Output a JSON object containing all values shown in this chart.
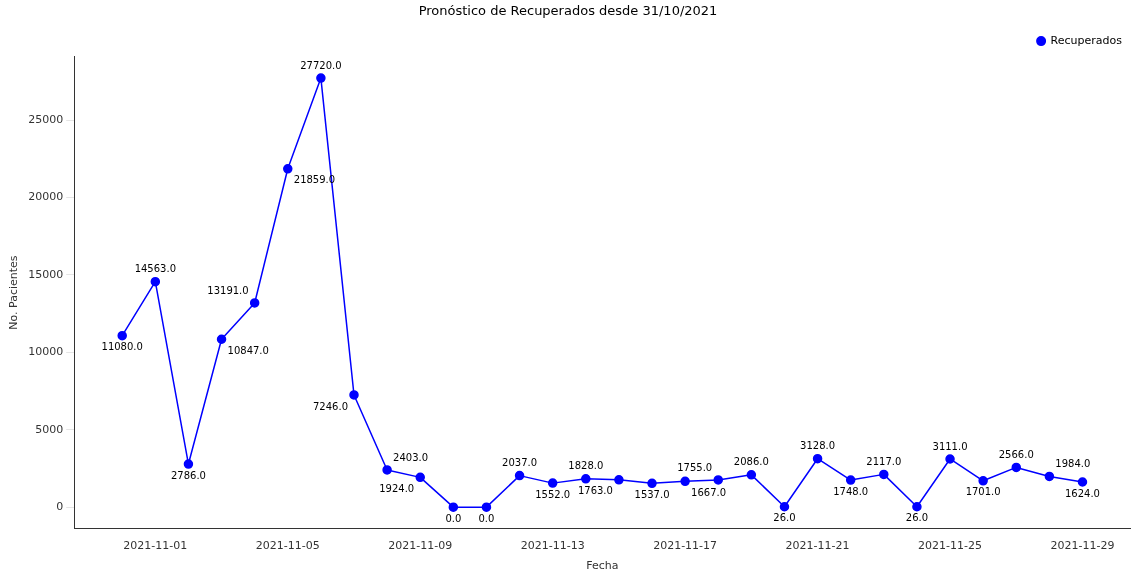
{
  "chart_data": {
    "type": "line",
    "title": "Pronóstico de Recuperados desde 31/10/2021",
    "xlabel": "Fecha",
    "ylabel": "No. Pacientes",
    "x": [
      "2021-10-31",
      "2021-11-01",
      "2021-11-02",
      "2021-11-03",
      "2021-11-04",
      "2021-11-05",
      "2021-11-06",
      "2021-11-07",
      "2021-11-08",
      "2021-11-09",
      "2021-11-10",
      "2021-11-11",
      "2021-11-12",
      "2021-11-13",
      "2021-11-14",
      "2021-11-15",
      "2021-11-16",
      "2021-11-17",
      "2021-11-18",
      "2021-11-19",
      "2021-11-20",
      "2021-11-21",
      "2021-11-22",
      "2021-11-23",
      "2021-11-24",
      "2021-11-25",
      "2021-11-26",
      "2021-11-27",
      "2021-11-28",
      "2021-11-29"
    ],
    "series": [
      {
        "name": "Recuperados",
        "color": "#0000ff",
        "values": [
          11080,
          14563,
          2786,
          10847,
          13191,
          21859,
          27720,
          7246,
          2403,
          1924,
          0,
          0,
          2037,
          1552,
          1828,
          1763,
          1537,
          1667,
          1755,
          2086,
          26,
          3128,
          1748,
          2117,
          26,
          3111,
          1701,
          2566,
          1984,
          1624
        ],
        "value_labels": [
          "11080.0",
          "14563.0",
          "2786.0",
          "10847.0",
          "13191.0",
          "21859.0",
          "27720.0",
          "7246.0",
          "2403.0",
          "1924.0",
          "0.0",
          "0.0",
          "2037.0",
          "1552.0",
          "1828.0",
          "1763.0",
          "1537.0",
          "1667.0",
          "1755.0",
          "2086.0",
          "26.0",
          "3128.0",
          "1748.0",
          "2117.0",
          "26.0",
          "3111.0",
          "1701.0",
          "2566.0",
          "1984.0",
          "1624.0"
        ]
      }
    ],
    "xlim": [
      "2021-10-29T13:12",
      "2021-11-30T10:48"
    ],
    "xticks": [
      "2021-11-01",
      "2021-11-05",
      "2021-11-09",
      "2021-11-13",
      "2021-11-17",
      "2021-11-21",
      "2021-11-25",
      "2021-11-29"
    ],
    "ylim": [
      -1386,
      29106
    ],
    "yticks": [
      0,
      5000,
      10000,
      15000,
      20000,
      25000
    ],
    "grid": false,
    "legend": "top right",
    "marker": "circle",
    "line_style": "solid"
  }
}
